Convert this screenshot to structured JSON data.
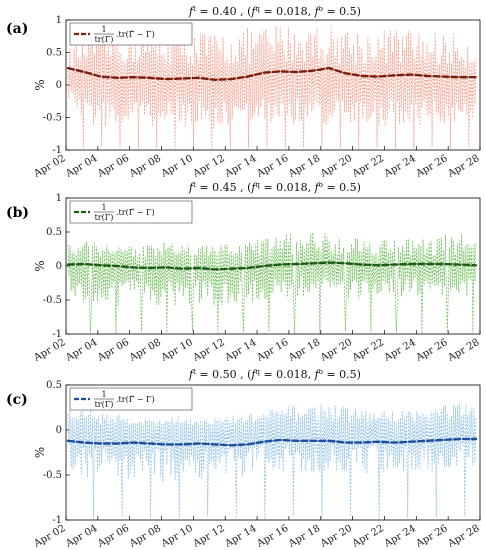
{
  "chart_data": [
    {
      "type": "line",
      "panel_label": "(a)",
      "title": "f^t = 0.40 , (f^q = 0.018, f^o = 0.5)",
      "ylabel": "%",
      "ylim": [
        -1,
        1
      ],
      "yticks": [
        -1,
        -0.5,
        0,
        0.5,
        1
      ],
      "x_tick_labels": [
        "Apr 02",
        "Apr 04",
        "Apr 06",
        "Apr 08",
        "Apr 10",
        "Apr 12",
        "Apr 14",
        "Apr 16",
        "Apr 18",
        "Apr 20",
        "Apr 22",
        "Apr 24",
        "Apr 26",
        "Apr 28"
      ],
      "legend": "1/tr(Γ) · tr(Γ̂ − Γ)",
      "legend_position": "top-left",
      "grid": false,
      "series": [
        {
          "role": "trend",
          "color": "#7a1f10",
          "values": [
            0.26,
            0.2,
            0.13,
            0.11,
            0.12,
            0.11,
            0.09,
            0.1,
            0.11,
            0.08,
            0.09,
            0.13,
            0.19,
            0.21,
            0.2,
            0.22,
            0.26,
            0.18,
            0.14,
            0.13,
            0.15,
            0.16,
            0.14,
            0.13,
            0.12,
            0.12
          ]
        },
        {
          "role": "raw",
          "color": "#f4a08f",
          "high": [
            0.55,
            0.82,
            0.9,
            0.86,
            0.86,
            0.84,
            0.88,
            0.8,
            0.86,
            0.8,
            0.84,
            0.88,
            0.92,
            0.96,
            0.96,
            0.96,
            0.94,
            0.92,
            0.86,
            0.88,
            0.9,
            0.86,
            0.86,
            0.8,
            0.78,
            0.72
          ],
          "low": [
            -0.2,
            -0.6,
            -0.68,
            -0.7,
            -0.66,
            -0.62,
            -0.72,
            -0.66,
            -0.7,
            -0.72,
            -0.74,
            -0.66,
            -0.6,
            -0.62,
            -0.6,
            -0.62,
            -0.64,
            -0.66,
            -0.7,
            -0.64,
            -0.62,
            -0.66,
            -0.62,
            -0.64,
            -0.6,
            -0.5
          ],
          "spikes": [
            -0.98,
            -0.95,
            -0.96,
            -0.98,
            -0.97,
            -0.99,
            -0.96,
            -0.98,
            -0.97,
            -0.96,
            -0.99,
            -0.98,
            -0.96,
            -0.95,
            -0.97,
            -0.99,
            -0.96,
            -0.98,
            -0.97,
            -0.95,
            -0.98,
            -0.96
          ]
        }
      ]
    },
    {
      "type": "line",
      "panel_label": "(b)",
      "title": "f^t = 0.45 , (f^q = 0.018, f^o = 0.5)",
      "ylabel": "%",
      "ylim": [
        -1,
        1
      ],
      "yticks": [
        -1,
        -0.5,
        0,
        0.5,
        1
      ],
      "x_tick_labels": [
        "Apr 02",
        "Apr 04",
        "Apr 06",
        "Apr 08",
        "Apr 10",
        "Apr 12",
        "Apr 14",
        "Apr 16",
        "Apr 18",
        "Apr 20",
        "Apr 22",
        "Apr 24",
        "Apr 26",
        "Apr 28"
      ],
      "legend": "1/tr(Γ) · tr(Γ̂ − Γ)",
      "legend_position": "top-left",
      "grid": false,
      "series": [
        {
          "role": "trend",
          "color": "#1e5b14",
          "values": [
            0.02,
            0.03,
            0.01,
            0.0,
            -0.02,
            -0.03,
            -0.02,
            -0.04,
            -0.03,
            -0.05,
            -0.04,
            -0.03,
            0.0,
            0.02,
            0.03,
            0.04,
            0.05,
            0.04,
            0.02,
            0.01,
            0.02,
            0.03,
            0.03,
            0.03,
            0.02,
            0.01
          ]
        },
        {
          "role": "raw",
          "color": "#6fbf5a",
          "high": [
            0.42,
            0.45,
            0.35,
            0.38,
            0.32,
            0.3,
            0.36,
            0.34,
            0.32,
            0.3,
            0.36,
            0.38,
            0.42,
            0.5,
            0.48,
            0.52,
            0.5,
            0.46,
            0.44,
            0.4,
            0.46,
            0.42,
            0.4,
            0.48,
            0.5,
            0.4
          ],
          "low": [
            -0.4,
            -0.55,
            -0.52,
            -0.6,
            -0.58,
            -0.55,
            -0.62,
            -0.58,
            -0.56,
            -0.6,
            -0.58,
            -0.55,
            -0.5,
            -0.48,
            -0.46,
            -0.44,
            -0.46,
            -0.48,
            -0.5,
            -0.46,
            -0.48,
            -0.46,
            -0.44,
            -0.46,
            -0.48,
            -0.4
          ],
          "spikes": [
            -0.98,
            -0.99,
            -0.97,
            -0.98,
            -0.96,
            -0.99,
            -0.98,
            -0.97,
            -0.99,
            -0.98,
            -0.96,
            -0.97,
            -0.98,
            -0.99,
            -0.97,
            -0.98
          ]
        }
      ]
    },
    {
      "type": "line",
      "panel_label": "(c)",
      "title": "f^t = 0.50 , (f^q = 0.018, f^o = 0.5)",
      "ylabel": "%",
      "ylim": [
        -1,
        0.5
      ],
      "yticks": [
        -1,
        -0.5,
        0,
        0.5
      ],
      "x_tick_labels": [
        "Apr 02",
        "Apr 04",
        "Apr 06",
        "Apr 08",
        "Apr 10",
        "Apr 12",
        "Apr 14",
        "Apr 16",
        "Apr 18",
        "Apr 20",
        "Apr 22",
        "Apr 24",
        "Apr 26",
        "Apr 28"
      ],
      "legend": "1/tr(Γ) · tr(Γ̂ − Γ)",
      "legend_position": "top-left",
      "grid": false,
      "series": [
        {
          "role": "trend",
          "color": "#1f4e9c",
          "values": [
            -0.12,
            -0.14,
            -0.15,
            -0.15,
            -0.14,
            -0.15,
            -0.16,
            -0.16,
            -0.15,
            -0.16,
            -0.17,
            -0.16,
            -0.13,
            -0.11,
            -0.12,
            -0.12,
            -0.12,
            -0.14,
            -0.14,
            -0.13,
            -0.14,
            -0.13,
            -0.12,
            -0.11,
            -0.1,
            -0.1
          ]
        },
        {
          "role": "raw",
          "color": "#8fc0e8",
          "high": [
            0.22,
            0.26,
            0.2,
            0.18,
            0.16,
            0.12,
            0.15,
            0.16,
            0.14,
            0.14,
            0.16,
            0.18,
            0.22,
            0.26,
            0.28,
            0.3,
            0.3,
            0.26,
            0.24,
            0.22,
            0.22,
            0.24,
            0.24,
            0.3,
            0.32,
            0.24
          ],
          "low": [
            -0.46,
            -0.52,
            -0.56,
            -0.58,
            -0.55,
            -0.52,
            -0.6,
            -0.56,
            -0.54,
            -0.56,
            -0.6,
            -0.54,
            -0.48,
            -0.46,
            -0.48,
            -0.48,
            -0.46,
            -0.48,
            -0.5,
            -0.48,
            -0.46,
            -0.48,
            -0.48,
            -0.46,
            -0.44,
            -0.4
          ],
          "spikes": [
            -0.98,
            -0.97,
            -0.99,
            -0.98,
            -0.96,
            -0.98,
            -0.99,
            -0.97,
            -0.98,
            -0.96,
            -0.99,
            -0.98,
            -0.97,
            -0.96
          ]
        }
      ]
    }
  ]
}
